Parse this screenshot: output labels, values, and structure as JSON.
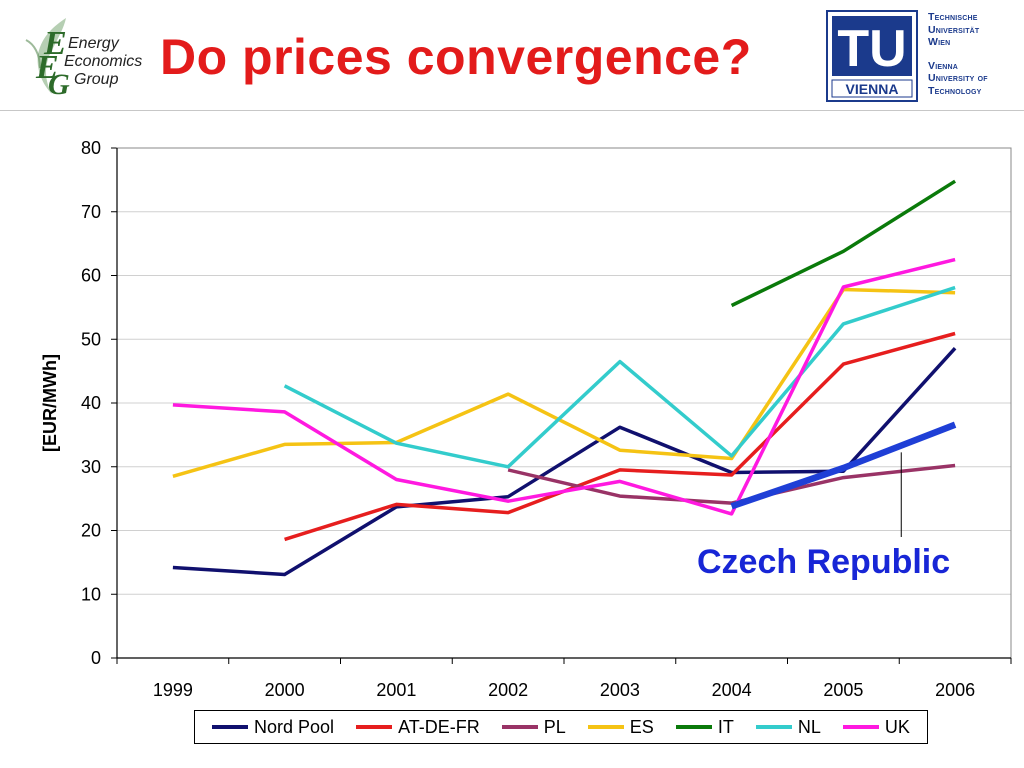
{
  "header": {
    "title": "Do prices convergence?",
    "eeg_logo": {
      "words": [
        "Energy",
        "Economics",
        "Group"
      ],
      "name": "eeg-logo-icon"
    },
    "tu_logo": {
      "mark": "TU",
      "word": "VIENNA",
      "lines": [
        "Technische",
        "Universität",
        "Wien",
        "Vienna",
        "University of",
        "Technology"
      ],
      "color": "#1b3a8c"
    }
  },
  "annotation": {
    "label": "Czech Republic",
    "color": "#1826d6"
  },
  "chart_data": {
    "type": "line",
    "title": "",
    "xlabel": "",
    "ylabel": "[EUR/MWh]",
    "ylim": [
      0,
      80
    ],
    "yticks": [
      0,
      10,
      20,
      30,
      40,
      50,
      60,
      70,
      80
    ],
    "categories": [
      "1999",
      "2000",
      "2001",
      "2002",
      "2003",
      "2004",
      "2005",
      "2006"
    ],
    "grid": "horizontal",
    "legend_position": "bottom",
    "series": [
      {
        "name": "Nord Pool",
        "color": "#10106e",
        "values": [
          14.2,
          13.1,
          23.7,
          25.3,
          36.2,
          29.1,
          29.3,
          48.6
        ]
      },
      {
        "name": "AT-DE-FR",
        "color": "#e61e1e",
        "values": [
          null,
          18.6,
          24.1,
          22.8,
          29.5,
          28.7,
          46.1,
          50.9
        ]
      },
      {
        "name": "PL",
        "color": "#993366",
        "values": [
          null,
          null,
          null,
          29.5,
          25.4,
          24.3,
          28.3,
          30.2
        ]
      },
      {
        "name": "ES",
        "color": "#f5c314",
        "values": [
          28.5,
          33.5,
          33.8,
          41.4,
          32.6,
          31.3,
          57.8,
          57.3
        ]
      },
      {
        "name": "IT",
        "color": "#0a7a0a",
        "values": [
          null,
          null,
          null,
          null,
          null,
          55.3,
          63.8,
          74.8
        ]
      },
      {
        "name": "NL",
        "color": "#33cccc",
        "values": [
          null,
          42.7,
          33.7,
          30.0,
          46.5,
          31.7,
          52.4,
          58.1
        ]
      },
      {
        "name": "UK",
        "color": "#ff19e0",
        "values": [
          39.7,
          38.6,
          28.0,
          24.6,
          27.7,
          22.6,
          58.2,
          62.5
        ]
      }
    ],
    "highlight_series": {
      "name": "Czech Republic",
      "color": "#1f3fd6",
      "values": [
        null,
        null,
        null,
        null,
        null,
        23.8,
        29.8,
        36.6
      ]
    }
  }
}
